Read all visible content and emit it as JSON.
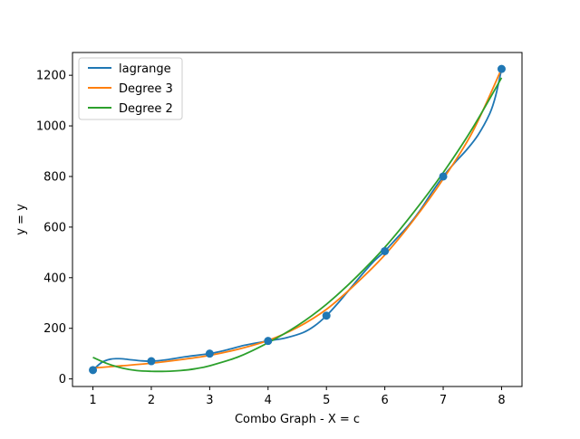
{
  "chart_data": {
    "type": "line",
    "title": "",
    "xlabel": "Combo Graph - X = c",
    "ylabel": "y = y",
    "xlim": [
      0.65,
      8.35
    ],
    "ylim": [
      -30,
      1290
    ],
    "xticks": [
      1,
      2,
      3,
      4,
      5,
      6,
      7,
      8
    ],
    "yticks": [
      0,
      200,
      400,
      600,
      800,
      1000,
      1200
    ],
    "grid": false,
    "legend_position": "top-left",
    "points": {
      "x": [
        1,
        2,
        3,
        4,
        5,
        6,
        7,
        8
      ],
      "y": [
        35,
        70,
        100,
        150,
        250,
        505,
        800,
        1225
      ],
      "color": "#1f77b4"
    },
    "series": [
      {
        "name": "lagrange",
        "color": "#1f77b4",
        "x": [
          1,
          1.15,
          1.3,
          1.45,
          1.6,
          1.8,
          2,
          2.3,
          2.6,
          3,
          3.3,
          3.6,
          4,
          4.3,
          4.6,
          4.8,
          5,
          5.2,
          5.4,
          5.6,
          5.8,
          6,
          6.2,
          6.4,
          6.6,
          6.8,
          7,
          7.2,
          7.4,
          7.6,
          7.8,
          7.9,
          8
        ],
        "y": [
          35,
          65,
          78,
          80,
          77,
          72,
          70,
          77,
          88,
          100,
          115,
          133,
          150,
          162,
          183,
          210,
          250,
          300,
          355,
          410,
          462,
          505,
          555,
          605,
          665,
          735,
          800,
          855,
          905,
          965,
          1050,
          1120,
          1225
        ]
      },
      {
        "name": "Degree 3",
        "color": "#ff7f0e",
        "x": [
          1,
          1.5,
          2,
          2.5,
          3,
          3.5,
          4,
          4.5,
          5,
          5.5,
          6,
          6.5,
          7,
          7.5,
          8
        ],
        "y": [
          43,
          52,
          62,
          76,
          93,
          118,
          152,
          203,
          275,
          375,
          490,
          630,
          790,
          975,
          1225
        ]
      },
      {
        "name": "Degree 2",
        "color": "#2ca02c",
        "x": [
          1,
          1.25,
          1.5,
          1.75,
          2,
          2.25,
          2.5,
          2.75,
          3,
          3.5,
          4,
          4.5,
          5,
          5.5,
          6,
          6.5,
          7,
          7.5,
          8
        ],
        "y": [
          85,
          60,
          43,
          33,
          30,
          30,
          33,
          40,
          52,
          88,
          143,
          210,
          295,
          400,
          520,
          660,
          815,
          990,
          1190
        ]
      }
    ]
  }
}
